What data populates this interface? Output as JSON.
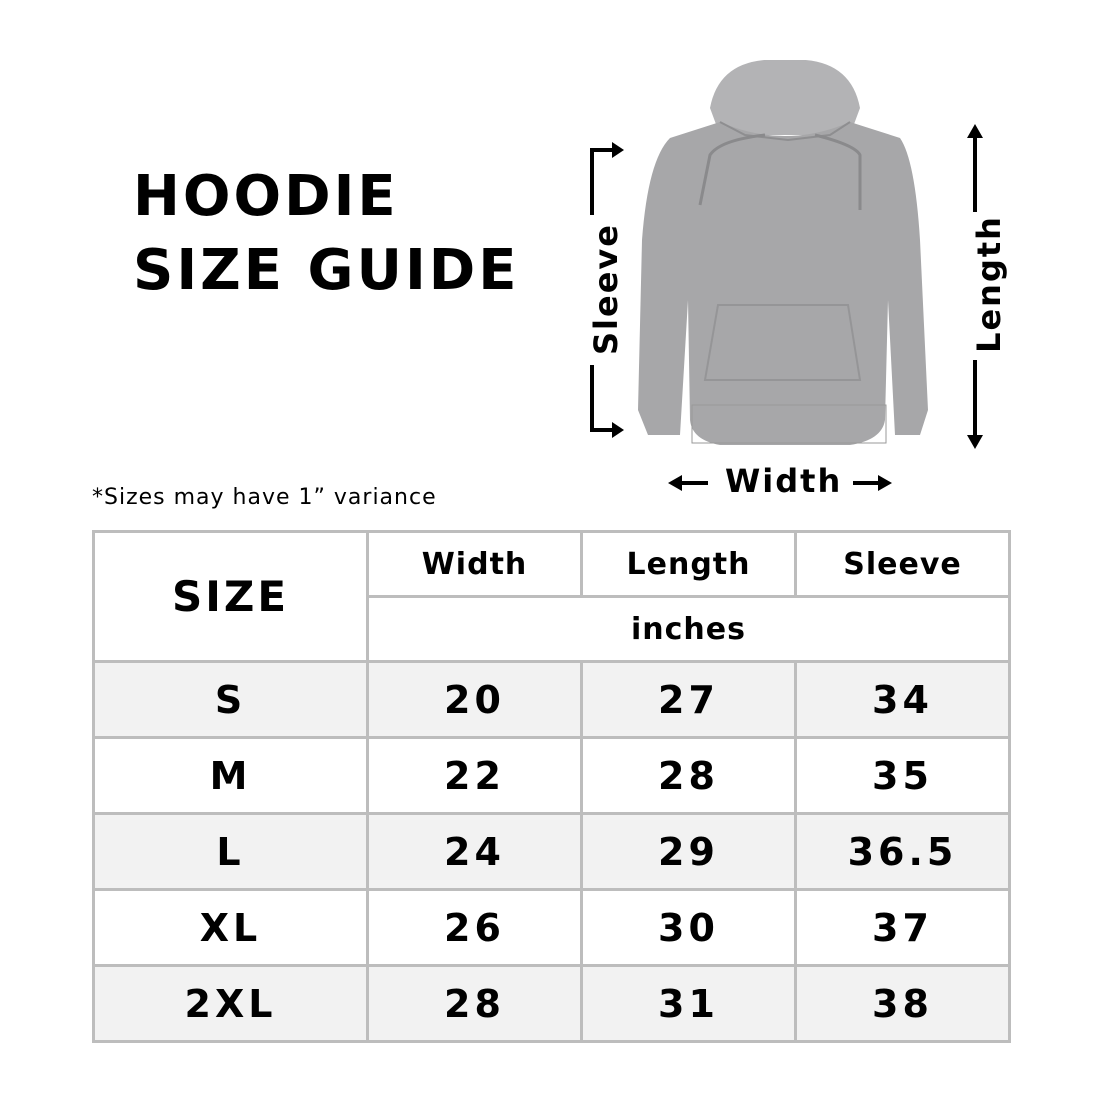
{
  "title": {
    "line1": "HOODIE",
    "line2": "SIZE GUIDE"
  },
  "note": "*Sizes may have 1” variance",
  "figure": {
    "sleeve_label": "Sleeve",
    "length_label": "Length",
    "width_label": "Width",
    "hoodie_color": "#a7a7a9"
  },
  "table": {
    "size_header": "SIZE",
    "columns": [
      "Width",
      "Length",
      "Sleeve"
    ],
    "unit": "inches",
    "rows": [
      {
        "size": "S",
        "width": "20",
        "length": "27",
        "sleeve": "34"
      },
      {
        "size": "M",
        "width": "22",
        "length": "28",
        "sleeve": "35"
      },
      {
        "size": "L",
        "width": "24",
        "length": "29",
        "sleeve": "36.5"
      },
      {
        "size": "XL",
        "width": "26",
        "length": "30",
        "sleeve": "37"
      },
      {
        "size": "2XL",
        "width": "28",
        "length": "31",
        "sleeve": "38"
      }
    ],
    "stripe_color": "#f2f2f2",
    "border_color": "#bdbdbd"
  }
}
